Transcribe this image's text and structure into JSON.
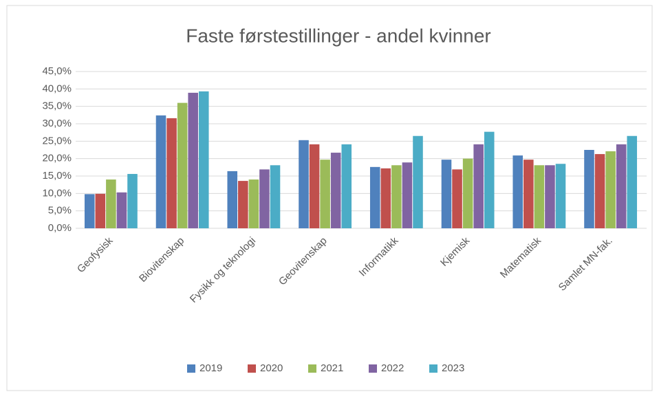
{
  "chart_data": {
    "type": "bar",
    "title": "Faste førstestillinger - andel kvinner",
    "categories": [
      "Geofysisk",
      "Biovitenskap",
      "Fysikk og teknologi",
      "Geovitenskap",
      "Informatikk",
      "Kjemisk",
      "Matematisk",
      "Samlet MN-fak."
    ],
    "series": [
      {
        "name": "2019",
        "color": "#4f81bd",
        "values": [
          9.8,
          32.4,
          16.4,
          25.3,
          17.6,
          19.7,
          20.9,
          22.5
        ]
      },
      {
        "name": "2020",
        "color": "#c0504d",
        "values": [
          9.9,
          31.6,
          13.6,
          24.1,
          17.2,
          16.9,
          19.7,
          21.3
        ]
      },
      {
        "name": "2021",
        "color": "#9bbb59",
        "values": [
          14.0,
          36.0,
          14.0,
          19.7,
          18.1,
          20.0,
          18.1,
          22.1
        ]
      },
      {
        "name": "2022",
        "color": "#8064a2",
        "values": [
          10.3,
          38.9,
          16.9,
          21.7,
          18.9,
          24.1,
          18.1,
          24.1
        ]
      },
      {
        "name": "2023",
        "color": "#4bacc6",
        "values": [
          15.6,
          39.3,
          18.1,
          24.1,
          26.5,
          27.7,
          18.5,
          26.5
        ]
      }
    ],
    "ylim": [
      0,
      45
    ],
    "yticks": [
      {
        "value": 0,
        "label": "0,0%"
      },
      {
        "value": 5,
        "label": "5,0%"
      },
      {
        "value": 10,
        "label": "10,0%"
      },
      {
        "value": 15,
        "label": "15,0%"
      },
      {
        "value": 20,
        "label": "20,0%"
      },
      {
        "value": 25,
        "label": "25,0%"
      },
      {
        "value": 30,
        "label": "30,0%"
      },
      {
        "value": 35,
        "label": "35,0%"
      },
      {
        "value": 40,
        "label": "40,0%"
      },
      {
        "value": 45,
        "label": "45,0%"
      }
    ],
    "grid": true,
    "legend": "bottom"
  }
}
